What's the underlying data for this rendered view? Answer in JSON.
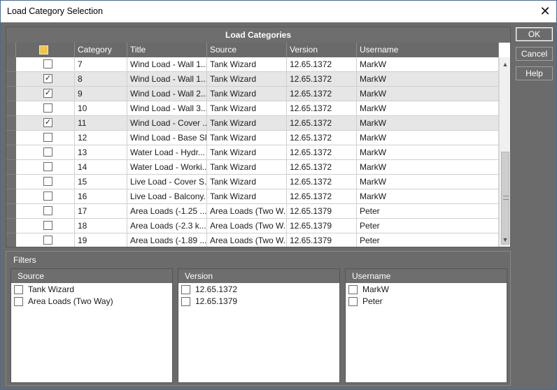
{
  "window": {
    "title": "Load Category Selection"
  },
  "grid": {
    "caption": "Load Categories",
    "columns": [
      "",
      "Category",
      "Title",
      "Source",
      "Version",
      "Username"
    ],
    "rows": [
      {
        "checked": false,
        "category": "7",
        "title": "Wind Load - Wall 1...",
        "source": "Tank Wizard",
        "version": "12.65.1372",
        "username": "MarkW"
      },
      {
        "checked": true,
        "category": "8",
        "title": "Wind Load - Wall 1...",
        "source": "Tank Wizard",
        "version": "12.65.1372",
        "username": "MarkW"
      },
      {
        "checked": true,
        "category": "9",
        "title": "Wind Load - Wall 2...",
        "source": "Tank Wizard",
        "version": "12.65.1372",
        "username": "MarkW"
      },
      {
        "checked": false,
        "category": "10",
        "title": "Wind Load - Wall 3...",
        "source": "Tank Wizard",
        "version": "12.65.1372",
        "username": "MarkW"
      },
      {
        "checked": true,
        "category": "11",
        "title": "Wind Load - Cover ...",
        "source": "Tank Wizard",
        "version": "12.65.1372",
        "username": "MarkW"
      },
      {
        "checked": false,
        "category": "12",
        "title": "Wind Load - Base Slab",
        "source": "Tank Wizard",
        "version": "12.65.1372",
        "username": "MarkW"
      },
      {
        "checked": false,
        "category": "13",
        "title": "Water Load - Hydr...",
        "source": "Tank Wizard",
        "version": "12.65.1372",
        "username": "MarkW"
      },
      {
        "checked": false,
        "category": "14",
        "title": "Water Load - Worki...",
        "source": "Tank Wizard",
        "version": "12.65.1372",
        "username": "MarkW"
      },
      {
        "checked": false,
        "category": "15",
        "title": "Live Load - Cover S...",
        "source": "Tank Wizard",
        "version": "12.65.1372",
        "username": "MarkW"
      },
      {
        "checked": false,
        "category": "16",
        "title": "Live Load - Balcony...",
        "source": "Tank Wizard",
        "version": "12.65.1372",
        "username": "MarkW"
      },
      {
        "checked": false,
        "category": "17",
        "title": "Area Loads (-1.25 ...",
        "source": "Area Loads (Two W...",
        "version": "12.65.1379",
        "username": "Peter"
      },
      {
        "checked": false,
        "category": "18",
        "title": "Area Loads (-2.3 k...",
        "source": "Area Loads (Two W...",
        "version": "12.65.1379",
        "username": "Peter"
      },
      {
        "checked": false,
        "category": "19",
        "title": "Area Loads (-1.89 ...",
        "source": "Area Loads (Two W...",
        "version": "12.65.1379",
        "username": "Peter"
      }
    ]
  },
  "filters": {
    "label": "Filters",
    "source": {
      "header": "Source",
      "items": [
        "Tank Wizard",
        "Area Loads (Two Way)"
      ]
    },
    "version": {
      "header": "Version",
      "items": [
        "12.65.1372",
        "12.65.1379"
      ]
    },
    "username": {
      "header": "Username",
      "items": [
        "MarkW",
        "Peter"
      ]
    }
  },
  "buttons": {
    "ok": "OK",
    "cancel": "Cancel",
    "help": "Help"
  }
}
